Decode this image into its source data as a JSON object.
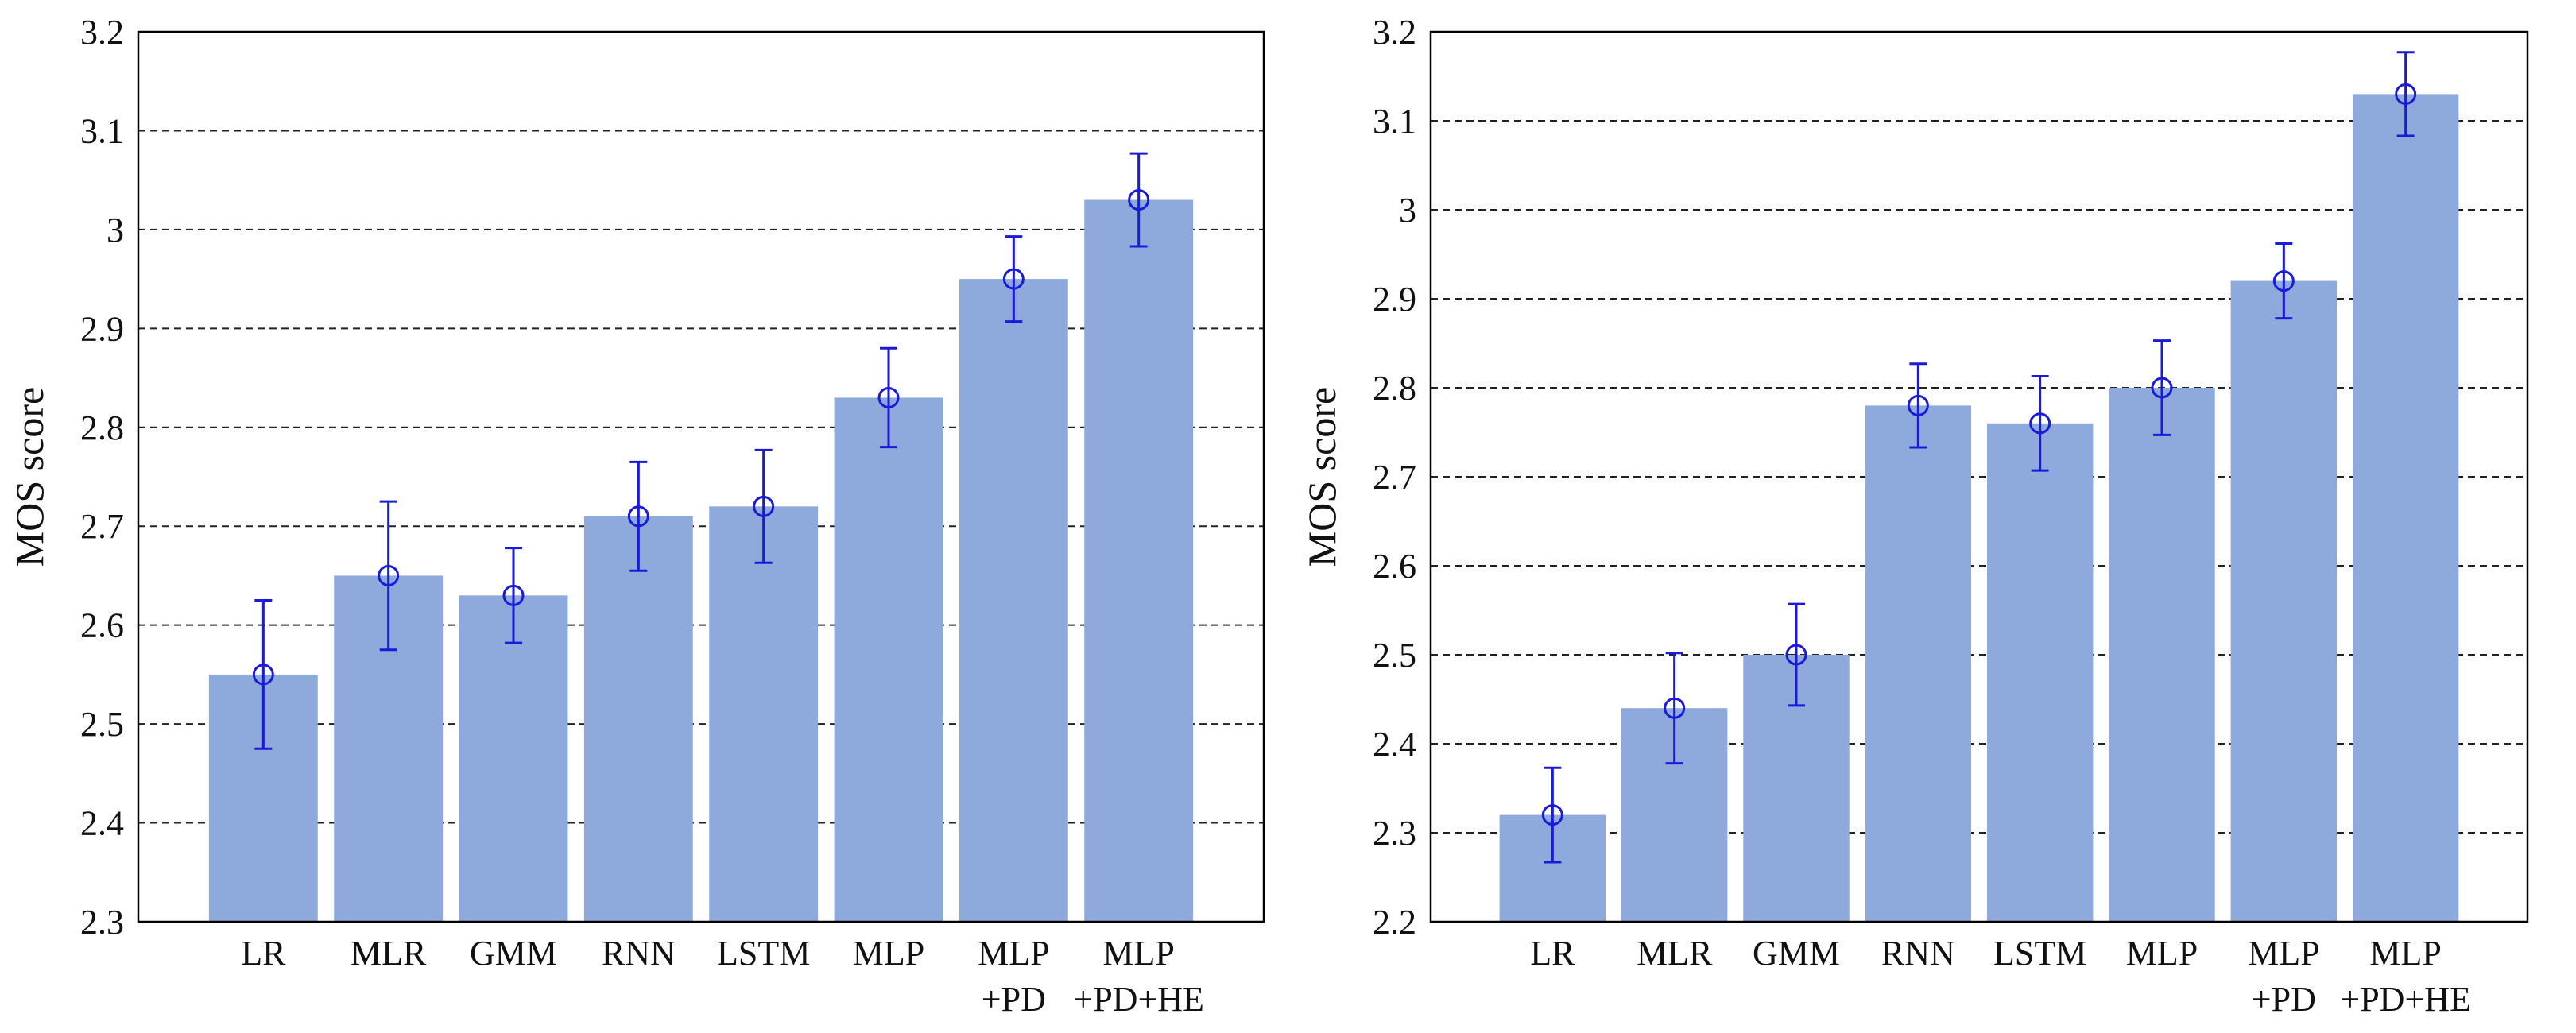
{
  "colors": {
    "bar": "#8ea9dc",
    "errorbar": "#1a1adb",
    "grid": "#222222",
    "axis": "#000000"
  },
  "chart_data": [
    {
      "type": "bar",
      "title": "",
      "xlabel": "",
      "ylabel": "MOS score",
      "ylim": [
        2.3,
        3.2
      ],
      "yticks": [
        "2.3",
        "2.4",
        "2.5",
        "2.6",
        "2.7",
        "2.8",
        "2.9",
        "3",
        "3.1",
        "3.2"
      ],
      "grid": "dashed horizontal",
      "categories": [
        [
          "LR"
        ],
        [
          "MLR"
        ],
        [
          "GMM"
        ],
        [
          "RNN"
        ],
        [
          "LSTM"
        ],
        [
          "MLP"
        ],
        [
          "MLP",
          "+PD"
        ],
        [
          "MLP",
          "+PD+HE"
        ]
      ],
      "values": [
        2.55,
        2.65,
        2.63,
        2.71,
        2.72,
        2.83,
        2.95,
        3.03
      ],
      "errors": [
        0.075,
        0.075,
        0.048,
        0.055,
        0.057,
        0.05,
        0.043,
        0.047
      ]
    },
    {
      "type": "bar",
      "title": "",
      "xlabel": "",
      "ylabel": "MOS score",
      "ylim": [
        2.2,
        3.2
      ],
      "yticks": [
        "2.2",
        "2.3",
        "2.4",
        "2.5",
        "2.6",
        "2.7",
        "2.8",
        "2.9",
        "3",
        "3.1",
        "3.2"
      ],
      "grid": "dashed horizontal",
      "categories": [
        [
          "LR"
        ],
        [
          "MLR"
        ],
        [
          "GMM"
        ],
        [
          "RNN"
        ],
        [
          "LSTM"
        ],
        [
          "MLP"
        ],
        [
          "MLP",
          "+PD"
        ],
        [
          "MLP",
          "+PD+HE"
        ]
      ],
      "values": [
        2.32,
        2.44,
        2.5,
        2.78,
        2.76,
        2.8,
        2.92,
        3.13
      ],
      "errors": [
        0.053,
        0.062,
        0.057,
        0.047,
        0.053,
        0.053,
        0.042,
        0.047
      ]
    }
  ]
}
